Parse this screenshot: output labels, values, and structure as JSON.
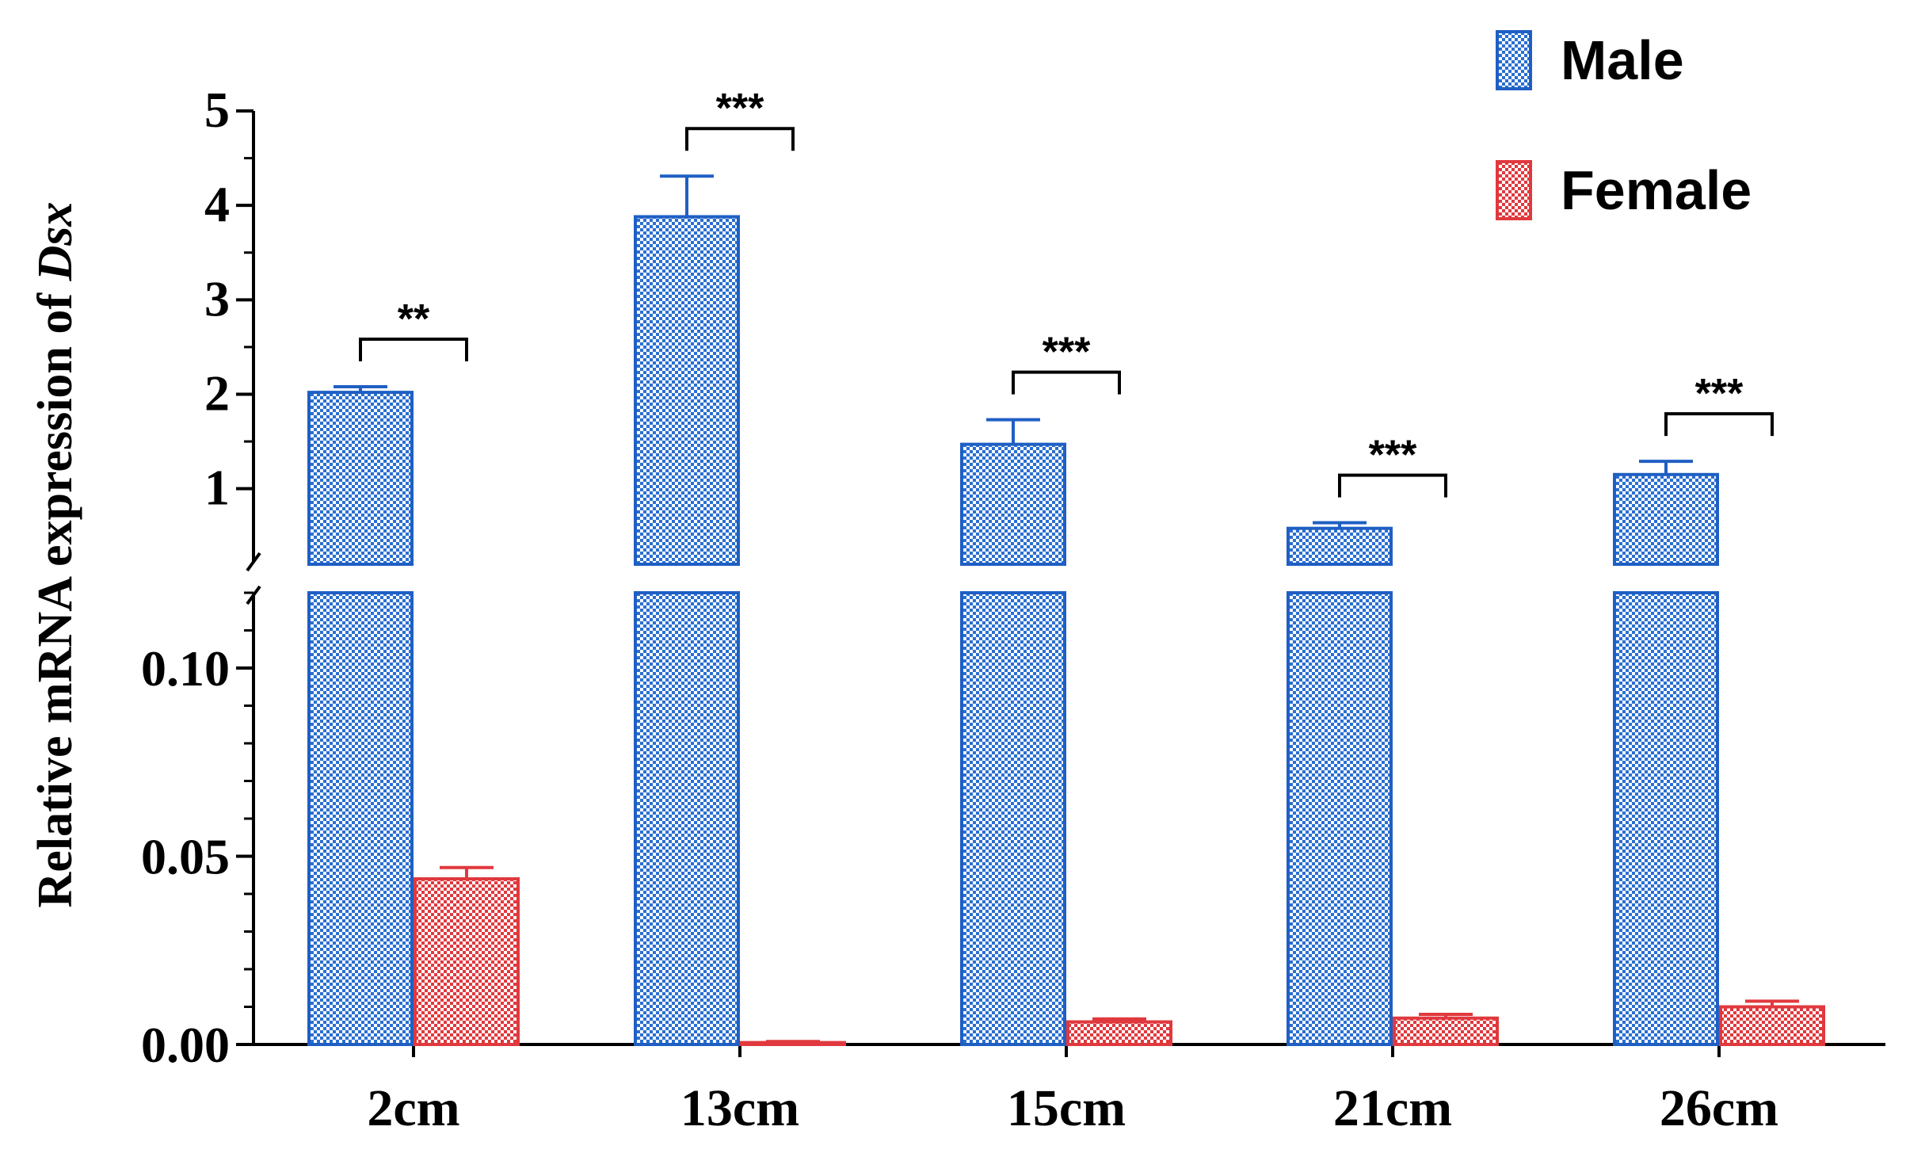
{
  "chart_data": {
    "type": "bar",
    "ylabel_prefix": "Relative mRNA expression of ",
    "ylabel_gene": "Dsx",
    "categories": [
      "2cm",
      "13cm",
      "15cm",
      "21cm",
      "26cm"
    ],
    "series": [
      {
        "name": "Male",
        "values": [
          2.02,
          3.88,
          1.47,
          0.58,
          1.15
        ],
        "errors": [
          0.06,
          0.43,
          0.26,
          0.06,
          0.14
        ],
        "color": "#1f5fc4",
        "pattern_color": "#2a6fd1"
      },
      {
        "name": "Female",
        "values": [
          0.044,
          0.0005,
          0.006,
          0.007,
          0.01
        ],
        "errors": [
          0.003,
          0.0003,
          0.0008,
          0.001,
          0.0015
        ],
        "color": "#e0393e",
        "pattern_color": "#e0393e"
      }
    ],
    "significance": [
      "**",
      "***",
      "***",
      "***",
      "***"
    ],
    "y_axis": {
      "broken": true,
      "lower": {
        "range": [
          0,
          0.12
        ],
        "ticks": [
          0,
          0.05,
          0.1
        ],
        "tick_labels": [
          "0.00",
          "0.05",
          "0.10"
        ]
      },
      "upper": {
        "range": [
          0.2,
          5
        ],
        "ticks": [
          1,
          2,
          3,
          4,
          5
        ],
        "tick_labels": [
          "1",
          "2",
          "3",
          "4",
          "5"
        ]
      }
    },
    "grid": false,
    "legend_position": "top-right"
  }
}
